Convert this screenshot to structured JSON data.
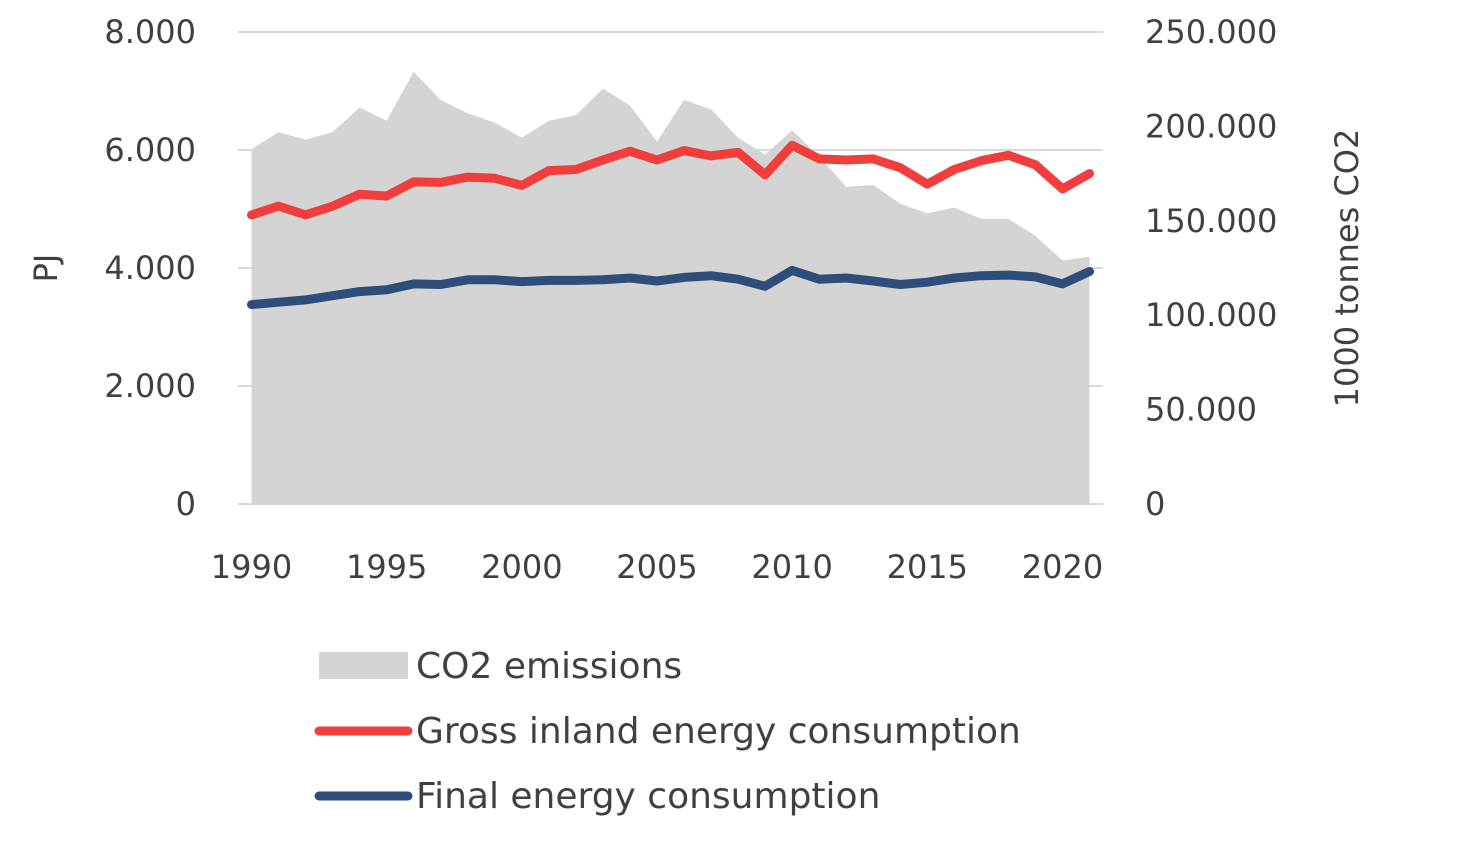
{
  "chart_data": {
    "type": "area",
    "x": [
      1990,
      1991,
      1992,
      1993,
      1994,
      1995,
      1996,
      1997,
      1998,
      1999,
      2000,
      2001,
      2002,
      2003,
      2004,
      2005,
      2006,
      2007,
      2008,
      2009,
      2010,
      2011,
      2012,
      2013,
      2014,
      2015,
      2016,
      2017,
      2018,
      2019,
      2020,
      2021
    ],
    "xticks": [
      "1990",
      "1995",
      "2000",
      "2005",
      "2010",
      "2015",
      "2020"
    ],
    "xtick_values": [
      1990,
      1995,
      2000,
      2005,
      2010,
      2015,
      2020
    ],
    "xlim": [
      1989.5,
      2021.5
    ],
    "left_axis": {
      "label": "PJ",
      "ylim": [
        0,
        8000
      ],
      "ticks": [
        0,
        2000,
        4000,
        6000,
        8000
      ],
      "tick_labels": [
        "0",
        "2.000",
        "4.000",
        "6.000",
        "8.000"
      ]
    },
    "right_axis": {
      "label": "1000 tonnes CO2",
      "ylim": [
        0,
        250000
      ],
      "ticks": [
        0,
        50000,
        100000,
        150000,
        200000,
        250000
      ],
      "tick_labels": [
        "0",
        "50.000",
        "100.000",
        "150.000",
        "200.000",
        "250.000"
      ]
    },
    "grid": true,
    "legend_position": "bottom",
    "series": [
      {
        "name": "CO2 emissions",
        "type": "area",
        "axis": "right",
        "color": "#d4d4d4",
        "values": [
          188000,
          197000,
          193000,
          197000,
          210000,
          203000,
          229000,
          214000,
          207000,
          202000,
          194000,
          203000,
          206000,
          220000,
          211000,
          192000,
          214000,
          209000,
          194000,
          185000,
          198000,
          184000,
          168000,
          169000,
          159000,
          154000,
          157000,
          151000,
          151000,
          142000,
          129000,
          131000
        ]
      },
      {
        "name": "Gross inland energy consumption",
        "type": "line",
        "axis": "left",
        "color": "#ef3e3b",
        "values": [
          4900,
          5050,
          4900,
          5050,
          5250,
          5220,
          5460,
          5450,
          5540,
          5520,
          5400,
          5650,
          5670,
          5830,
          5980,
          5830,
          5990,
          5900,
          5960,
          5580,
          6080,
          5850,
          5830,
          5850,
          5700,
          5420,
          5670,
          5820,
          5910,
          5750,
          5340,
          5600
        ]
      },
      {
        "name": "Final energy consumption",
        "type": "line",
        "axis": "left",
        "color": "#2e4d7b",
        "values": [
          3380,
          3420,
          3460,
          3530,
          3600,
          3630,
          3730,
          3720,
          3800,
          3800,
          3770,
          3790,
          3790,
          3800,
          3830,
          3780,
          3840,
          3870,
          3810,
          3690,
          3960,
          3810,
          3830,
          3780,
          3720,
          3760,
          3830,
          3870,
          3880,
          3850,
          3730,
          3940
        ]
      }
    ]
  }
}
